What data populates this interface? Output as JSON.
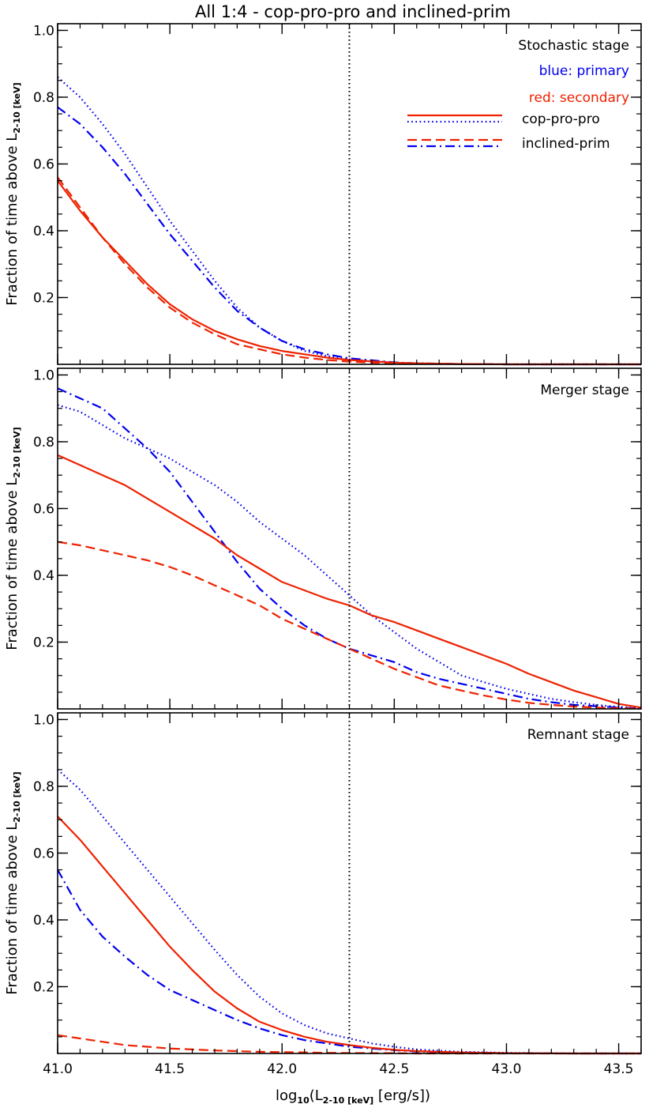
{
  "figure": {
    "title": "All 1:4 - cop-pro-pro and inclined-prim",
    "ylabel_main": "Fraction of time above L",
    "ylabel_sub": "2-10 [keV]",
    "xlabel_pre": "log",
    "xlabel_pre_sub": "10",
    "xlabel_mid": "(L",
    "xlabel_sub": "2-10 [keV]",
    "xlabel_post": " [erg/s])",
    "threshold_x": 42.3,
    "legend": {
      "blue_text": "blue: primary",
      "red_text": "red: secondary",
      "row1_label": "cop-pro-pro",
      "row2_label": "inclined-prim"
    },
    "colors": {
      "primary": "#0000ee",
      "secondary": "#ee2200"
    }
  },
  "chart_data": [
    {
      "type": "line",
      "stage_label": "Stochastic stage",
      "xlim": [
        41.0,
        43.6
      ],
      "ylim": [
        0.0,
        1.02
      ],
      "xticks": [
        41.0,
        41.5,
        42.0,
        42.5,
        43.0,
        43.5
      ],
      "xtick_labels": [
        "41.0",
        "41.5",
        "42.0",
        "42.5",
        "43.0",
        "43.5"
      ],
      "yticks": [
        0.2,
        0.4,
        0.6,
        0.8,
        1.0
      ],
      "ytick_labels": [
        "0.2",
        "0.4",
        "0.6",
        "0.8",
        "1.0"
      ],
      "series": [
        {
          "color": "primary",
          "dash": "dotted",
          "x": [
            41.0,
            41.1,
            41.2,
            41.3,
            41.4,
            41.5,
            41.6,
            41.7,
            41.8,
            41.9,
            42.0,
            42.1,
            42.2,
            42.3,
            42.4,
            42.5,
            42.6,
            42.8,
            43.0,
            43.3,
            43.6
          ],
          "y": [
            0.86,
            0.8,
            0.72,
            0.63,
            0.53,
            0.43,
            0.34,
            0.25,
            0.17,
            0.11,
            0.07,
            0.04,
            0.025,
            0.015,
            0.01,
            0.005,
            0.003,
            0.001,
            0.0,
            0.0,
            0.0
          ]
        },
        {
          "color": "primary",
          "dash": "dashdot",
          "x": [
            41.0,
            41.1,
            41.2,
            41.3,
            41.4,
            41.5,
            41.6,
            41.7,
            41.8,
            41.9,
            42.0,
            42.1,
            42.2,
            42.3,
            42.4,
            42.5,
            42.6,
            42.8,
            43.0,
            43.3,
            43.6
          ],
          "y": [
            0.77,
            0.72,
            0.65,
            0.57,
            0.48,
            0.39,
            0.31,
            0.23,
            0.16,
            0.11,
            0.07,
            0.045,
            0.03,
            0.018,
            0.012,
            0.006,
            0.003,
            0.001,
            0.0,
            0.0,
            0.0
          ]
        },
        {
          "color": "secondary",
          "dash": "solid",
          "x": [
            41.0,
            41.1,
            41.2,
            41.3,
            41.4,
            41.5,
            41.6,
            41.7,
            41.8,
            41.9,
            42.0,
            42.1,
            42.2,
            42.3,
            42.4,
            42.5,
            42.6,
            42.8,
            43.0,
            43.3,
            43.6
          ],
          "y": [
            0.55,
            0.46,
            0.38,
            0.31,
            0.24,
            0.18,
            0.135,
            0.1,
            0.075,
            0.055,
            0.04,
            0.03,
            0.02,
            0.013,
            0.009,
            0.005,
            0.003,
            0.001,
            0.0,
            0.0,
            0.0
          ]
        },
        {
          "color": "secondary",
          "dash": "dashed",
          "x": [
            41.0,
            41.1,
            41.2,
            41.3,
            41.4,
            41.5,
            41.6,
            41.7,
            41.8,
            41.9,
            42.0,
            42.1,
            42.2,
            42.3,
            42.4,
            42.5,
            42.6,
            42.8,
            43.0,
            43.3,
            43.6
          ],
          "y": [
            0.56,
            0.47,
            0.38,
            0.3,
            0.23,
            0.17,
            0.125,
            0.09,
            0.06,
            0.045,
            0.03,
            0.02,
            0.013,
            0.008,
            0.005,
            0.003,
            0.002,
            0.001,
            0.0,
            0.0,
            0.0
          ]
        }
      ]
    },
    {
      "type": "line",
      "stage_label": "Merger stage",
      "xlim": [
        41.0,
        43.6
      ],
      "ylim": [
        0.0,
        1.02
      ],
      "xticks": [
        41.0,
        41.5,
        42.0,
        42.5,
        43.0,
        43.5
      ],
      "xtick_labels": [
        "41.0",
        "41.5",
        "42.0",
        "42.5",
        "43.0",
        "43.5"
      ],
      "yticks": [
        0.2,
        0.4,
        0.6,
        0.8,
        1.0
      ],
      "ytick_labels": [
        "0.2",
        "0.4",
        "0.6",
        "0.8",
        "1.0"
      ],
      "series": [
        {
          "color": "primary",
          "dash": "dotted",
          "x": [
            41.0,
            41.1,
            41.2,
            41.3,
            41.4,
            41.5,
            41.6,
            41.7,
            41.8,
            41.9,
            42.0,
            42.1,
            42.2,
            42.3,
            42.4,
            42.5,
            42.6,
            42.7,
            42.8,
            42.9,
            43.0,
            43.1,
            43.2,
            43.3,
            43.4,
            43.5,
            43.6
          ],
          "y": [
            0.91,
            0.89,
            0.85,
            0.81,
            0.78,
            0.75,
            0.71,
            0.67,
            0.62,
            0.56,
            0.51,
            0.46,
            0.4,
            0.34,
            0.28,
            0.23,
            0.18,
            0.14,
            0.1,
            0.08,
            0.06,
            0.045,
            0.03,
            0.02,
            0.012,
            0.006,
            0.002
          ]
        },
        {
          "color": "primary",
          "dash": "dashdot",
          "x": [
            41.0,
            41.1,
            41.2,
            41.3,
            41.4,
            41.5,
            41.6,
            41.7,
            41.8,
            41.9,
            42.0,
            42.1,
            42.2,
            42.3,
            42.4,
            42.5,
            42.6,
            42.7,
            42.8,
            42.9,
            43.0,
            43.1,
            43.2,
            43.3,
            43.4,
            43.5,
            43.6
          ],
          "y": [
            0.96,
            0.93,
            0.9,
            0.84,
            0.78,
            0.71,
            0.62,
            0.53,
            0.44,
            0.36,
            0.3,
            0.25,
            0.21,
            0.18,
            0.16,
            0.14,
            0.11,
            0.09,
            0.075,
            0.06,
            0.045,
            0.03,
            0.02,
            0.012,
            0.008,
            0.004,
            0.001
          ]
        },
        {
          "color": "secondary",
          "dash": "solid",
          "x": [
            41.0,
            41.1,
            41.2,
            41.3,
            41.4,
            41.5,
            41.6,
            41.7,
            41.8,
            41.9,
            42.0,
            42.1,
            42.2,
            42.3,
            42.4,
            42.5,
            42.6,
            42.7,
            42.8,
            42.9,
            43.0,
            43.1,
            43.2,
            43.3,
            43.4,
            43.5,
            43.6
          ],
          "y": [
            0.76,
            0.73,
            0.7,
            0.67,
            0.63,
            0.59,
            0.55,
            0.51,
            0.46,
            0.42,
            0.38,
            0.355,
            0.33,
            0.31,
            0.28,
            0.26,
            0.235,
            0.21,
            0.185,
            0.16,
            0.135,
            0.105,
            0.08,
            0.055,
            0.035,
            0.015,
            0.004
          ]
        },
        {
          "color": "secondary",
          "dash": "dashed",
          "x": [
            41.0,
            41.1,
            41.2,
            41.3,
            41.4,
            41.5,
            41.6,
            41.7,
            41.8,
            41.9,
            42.0,
            42.1,
            42.2,
            42.3,
            42.4,
            42.5,
            42.6,
            42.7,
            42.8,
            42.9,
            43.0,
            43.1,
            43.2,
            43.3,
            43.4,
            43.5,
            43.6
          ],
          "y": [
            0.5,
            0.49,
            0.475,
            0.46,
            0.445,
            0.425,
            0.4,
            0.37,
            0.34,
            0.31,
            0.27,
            0.24,
            0.21,
            0.18,
            0.15,
            0.12,
            0.095,
            0.07,
            0.055,
            0.04,
            0.028,
            0.018,
            0.012,
            0.007,
            0.004,
            0.002,
            0.001
          ]
        }
      ]
    },
    {
      "type": "line",
      "stage_label": "Remnant stage",
      "xlim": [
        41.0,
        43.6
      ],
      "ylim": [
        0.0,
        1.02
      ],
      "xticks": [
        41.0,
        41.5,
        42.0,
        42.5,
        43.0,
        43.5
      ],
      "xtick_labels": [
        "41.0",
        "41.5",
        "42.0",
        "42.5",
        "43.0",
        "43.5"
      ],
      "yticks": [
        0.2,
        0.4,
        0.6,
        0.8,
        1.0
      ],
      "ytick_labels": [
        "0.2",
        "0.4",
        "0.6",
        "0.8",
        "1.0"
      ],
      "series": [
        {
          "color": "primary",
          "dash": "dotted",
          "x": [
            41.0,
            41.1,
            41.2,
            41.3,
            41.4,
            41.5,
            41.6,
            41.7,
            41.8,
            41.9,
            42.0,
            42.1,
            42.2,
            42.3,
            42.4,
            42.5,
            42.6,
            42.8,
            43.0,
            43.3,
            43.6
          ],
          "y": [
            0.85,
            0.79,
            0.71,
            0.63,
            0.55,
            0.47,
            0.39,
            0.31,
            0.235,
            0.17,
            0.12,
            0.085,
            0.06,
            0.045,
            0.03,
            0.02,
            0.012,
            0.005,
            0.002,
            0.0,
            0.0
          ]
        },
        {
          "color": "primary",
          "dash": "dashdot",
          "x": [
            41.0,
            41.1,
            41.2,
            41.3,
            41.4,
            41.5,
            41.6,
            41.7,
            41.8,
            41.9,
            42.0,
            42.1,
            42.2,
            42.3,
            42.4,
            42.5,
            42.6,
            42.8,
            43.0,
            43.3,
            43.6
          ],
          "y": [
            0.55,
            0.43,
            0.35,
            0.29,
            0.235,
            0.19,
            0.16,
            0.13,
            0.1,
            0.075,
            0.055,
            0.04,
            0.03,
            0.02,
            0.015,
            0.01,
            0.006,
            0.003,
            0.001,
            0.0,
            0.0
          ]
        },
        {
          "color": "secondary",
          "dash": "solid",
          "x": [
            41.0,
            41.1,
            41.2,
            41.3,
            41.4,
            41.5,
            41.6,
            41.7,
            41.8,
            41.9,
            42.0,
            42.1,
            42.2,
            42.3,
            42.4,
            42.5,
            42.6,
            42.8,
            43.0,
            43.3,
            43.6
          ],
          "y": [
            0.71,
            0.64,
            0.56,
            0.48,
            0.4,
            0.32,
            0.25,
            0.185,
            0.135,
            0.095,
            0.07,
            0.05,
            0.035,
            0.025,
            0.017,
            0.011,
            0.007,
            0.003,
            0.001,
            0.0,
            0.0
          ]
        },
        {
          "color": "secondary",
          "dash": "dashed",
          "x": [
            41.0,
            41.1,
            41.2,
            41.3,
            41.4,
            41.5,
            41.6,
            41.7,
            41.8,
            41.9,
            42.0,
            42.1,
            42.2,
            42.3,
            42.4,
            42.5,
            42.6,
            42.8,
            43.0,
            43.3,
            43.6
          ],
          "y": [
            0.055,
            0.045,
            0.035,
            0.025,
            0.02,
            0.015,
            0.012,
            0.009,
            0.007,
            0.005,
            0.004,
            0.003,
            0.002,
            0.0015,
            0.001,
            0.001,
            0.0,
            0.0,
            0.0,
            0.0,
            0.0
          ]
        }
      ]
    }
  ]
}
